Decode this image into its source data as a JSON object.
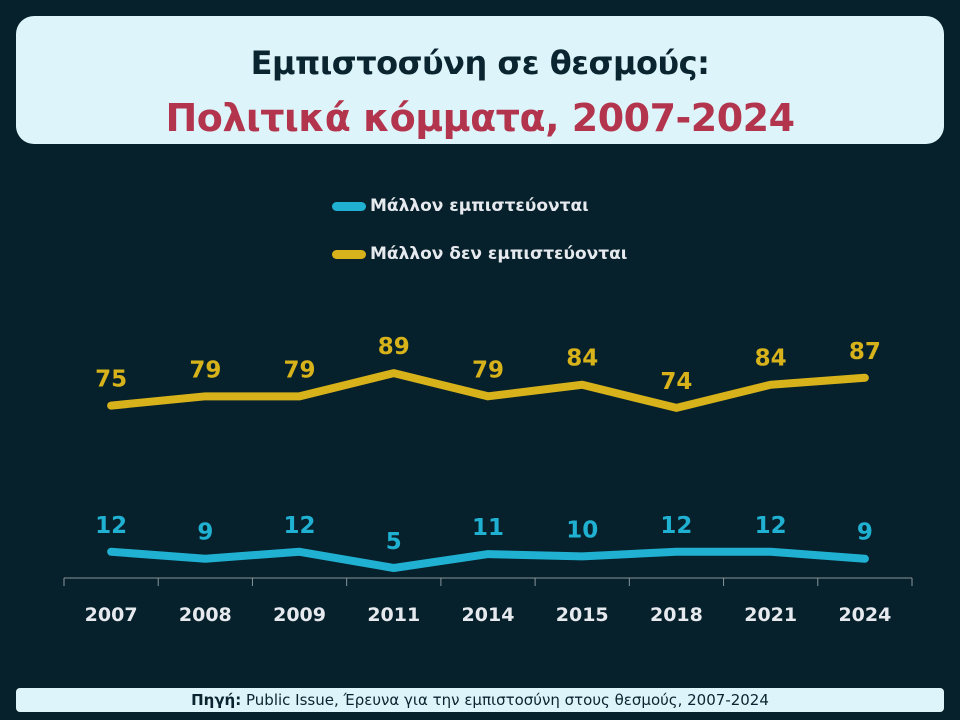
{
  "title": {
    "line1": "Εμπιστοσύνη σε θεσμούς:",
    "line2": "Πολιτικά κόμματα, 2007-2024"
  },
  "legend": [
    {
      "label": "Μάλλον εμπιστεύονται",
      "color": "#1fb0d2"
    },
    {
      "label": "Μάλλον δεν εμπιστεύονται",
      "color": "#d7b21a"
    }
  ],
  "footer": {
    "source_label": "Πηγή:",
    "source_text": "Public Issue, Έρευνα για την εμπιστοσύνη στους θεσμούς, 2007-2024"
  },
  "chart_data": {
    "type": "line",
    "title": "Εμπιστοσύνη σε θεσμούς: Πολιτικά κόμματα, 2007-2024",
    "categories": [
      "2007",
      "2008",
      "2009",
      "2011",
      "2014",
      "2015",
      "2018",
      "2021",
      "2024"
    ],
    "series": [
      {
        "name": "Μάλλον εμπιστεύονται",
        "color": "#1fb0d2",
        "values": [
          12,
          9,
          12,
          5,
          11,
          10,
          12,
          12,
          9
        ]
      },
      {
        "name": "Μάλλον δεν εμπιστεύονται",
        "color": "#d7b21a",
        "values": [
          75,
          79,
          79,
          89,
          79,
          84,
          74,
          84,
          87
        ]
      }
    ],
    "xlabel": "",
    "ylabel": "",
    "ylim": [
      0,
      100
    ],
    "grid": false,
    "data_labels": true,
    "legend_position": "top"
  }
}
